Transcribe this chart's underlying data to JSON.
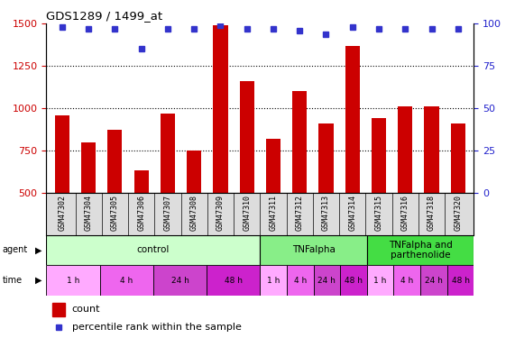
{
  "title": "GDS1289 / 1499_at",
  "samples": [
    "GSM47302",
    "GSM47304",
    "GSM47305",
    "GSM47306",
    "GSM47307",
    "GSM47308",
    "GSM47309",
    "GSM47310",
    "GSM47311",
    "GSM47312",
    "GSM47313",
    "GSM47314",
    "GSM47315",
    "GSM47316",
    "GSM47318",
    "GSM47320"
  ],
  "bar_values": [
    960,
    800,
    870,
    630,
    970,
    750,
    1490,
    1160,
    820,
    1100,
    910,
    1370,
    940,
    1010,
    1010,
    910
  ],
  "percentile_values": [
    98,
    97,
    97,
    85,
    97,
    97,
    99,
    97,
    97,
    96,
    94,
    98,
    97,
    97,
    97,
    97
  ],
  "bar_color": "#cc0000",
  "dot_color": "#3333cc",
  "ylim_left": [
    500,
    1500
  ],
  "ylim_right": [
    0,
    100
  ],
  "yticks_left": [
    500,
    750,
    1000,
    1250,
    1500
  ],
  "yticks_right": [
    0,
    25,
    50,
    75,
    100
  ],
  "agent_groups": [
    {
      "label": "control",
      "start": 0,
      "end": 8,
      "color": "#ccffcc"
    },
    {
      "label": "TNFalpha",
      "start": 8,
      "end": 12,
      "color": "#88ee88"
    },
    {
      "label": "TNFalpha and\nparthenolide",
      "start": 12,
      "end": 16,
      "color": "#44dd44"
    }
  ],
  "time_groups": [
    {
      "label": "1 h",
      "start": 0,
      "end": 2,
      "color": "#ffaaff"
    },
    {
      "label": "4 h",
      "start": 2,
      "end": 4,
      "color": "#ee66ee"
    },
    {
      "label": "24 h",
      "start": 4,
      "end": 6,
      "color": "#cc44cc"
    },
    {
      "label": "48 h",
      "start": 6,
      "end": 8,
      "color": "#cc22cc"
    },
    {
      "label": "1 h",
      "start": 8,
      "end": 9,
      "color": "#ffaaff"
    },
    {
      "label": "4 h",
      "start": 9,
      "end": 10,
      "color": "#ee66ee"
    },
    {
      "label": "24 h",
      "start": 10,
      "end": 11,
      "color": "#cc44cc"
    },
    {
      "label": "48 h",
      "start": 11,
      "end": 12,
      "color": "#cc22cc"
    },
    {
      "label": "1 h",
      "start": 12,
      "end": 13,
      "color": "#ffaaff"
    },
    {
      "label": "4 h",
      "start": 13,
      "end": 14,
      "color": "#ee66ee"
    },
    {
      "label": "24 h",
      "start": 14,
      "end": 15,
      "color": "#cc44cc"
    },
    {
      "label": "48 h",
      "start": 15,
      "end": 16,
      "color": "#cc22cc"
    }
  ],
  "label_color_left": "#cc0000",
  "label_color_right": "#2222cc",
  "bar_width": 0.55
}
